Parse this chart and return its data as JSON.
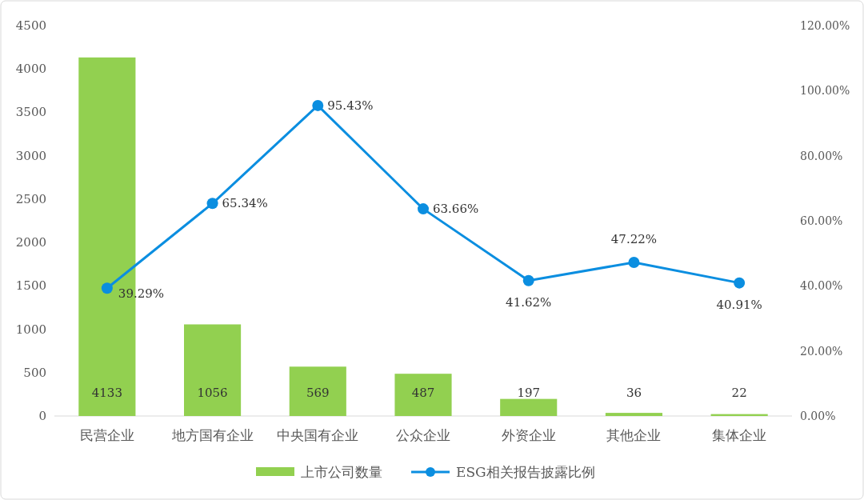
{
  "chart_data": {
    "type": "bar",
    "categories": [
      "民营企业",
      "地方国有企业",
      "中央国有企业",
      "公众企业",
      "外资企业",
      "其他企业",
      "集体企业"
    ],
    "series": [
      {
        "name": "上市公司数量",
        "color": "#92d050",
        "values": [
          4133,
          1056,
          569,
          487,
          197,
          36,
          22
        ],
        "value_labels": [
          "4133",
          "1056",
          "569",
          "487",
          "197",
          "36",
          "22"
        ]
      },
      {
        "name": "ESG相关报告披露比例",
        "type": "line",
        "axis": "y2",
        "color": "#0b8ee0",
        "marker": "circle",
        "values": [
          39.29,
          65.34,
          95.43,
          63.66,
          41.62,
          47.22,
          40.91
        ],
        "value_labels": [
          "39.29%",
          "65.34%",
          "95.43%",
          "63.66%",
          "41.62%",
          "47.22%",
          "40.91%"
        ]
      }
    ],
    "ylim": [
      0,
      4500
    ],
    "yticks": [
      0,
      500,
      1000,
      1500,
      2000,
      2500,
      3000,
      3500,
      4000,
      4500
    ],
    "y2lim": [
      0,
      120
    ],
    "y2ticks": [
      {
        "value": 0,
        "label": "0.00%"
      },
      {
        "value": 20,
        "label": "20.00%"
      },
      {
        "value": 40,
        "label": "40.00%"
      },
      {
        "value": 60,
        "label": "60.00%"
      },
      {
        "value": 80,
        "label": "80.00%"
      },
      {
        "value": 100,
        "label": "100.00%"
      },
      {
        "value": 120,
        "label": "120.00%"
      }
    ],
    "grid": false,
    "legend": "bottom"
  }
}
